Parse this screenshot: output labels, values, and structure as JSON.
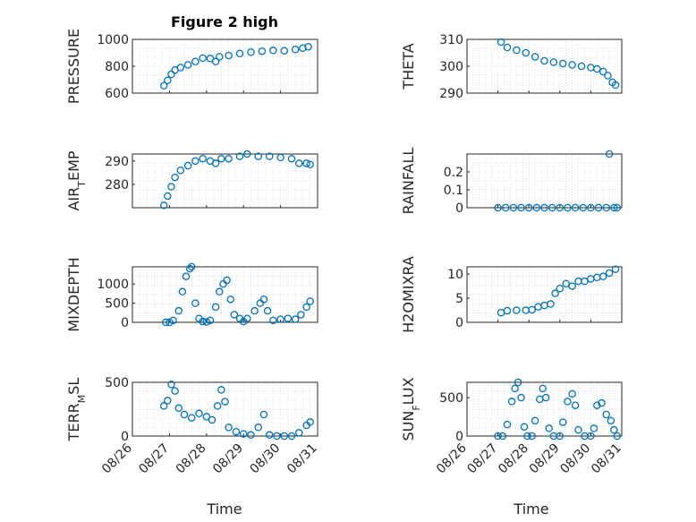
{
  "figure": {
    "title": "Figure 2 high",
    "xlabel": "Time"
  },
  "marker_color": "#0072BD",
  "chart_data": [
    {
      "type": "scatter",
      "ylabel": "PRESSURE",
      "xlim": [
        "08/26",
        "08/31"
      ],
      "ylim": [
        600,
        1000
      ],
      "yticks": [
        600,
        800,
        1000
      ],
      "xticks": [
        "08/26",
        "08/27",
        "08/28",
        "08/29",
        "08/30",
        "08/31"
      ],
      "show_xticklabels": false,
      "grid": true,
      "points": [
        [
          26.85,
          655
        ],
        [
          26.95,
          695
        ],
        [
          27.05,
          740
        ],
        [
          27.15,
          772
        ],
        [
          27.3,
          790
        ],
        [
          27.5,
          810
        ],
        [
          27.7,
          835
        ],
        [
          27.9,
          860
        ],
        [
          28.1,
          858
        ],
        [
          28.25,
          835
        ],
        [
          28.35,
          870
        ],
        [
          28.6,
          880
        ],
        [
          28.9,
          895
        ],
        [
          29.2,
          905
        ],
        [
          29.5,
          912
        ],
        [
          29.8,
          918
        ],
        [
          30.1,
          915
        ],
        [
          30.4,
          925
        ],
        [
          30.6,
          935
        ],
        [
          30.75,
          945
        ]
      ]
    },
    {
      "type": "scatter",
      "ylabel": "THETA",
      "xlim": [
        "08/26",
        "08/31"
      ],
      "ylim": [
        290,
        310
      ],
      "yticks": [
        290,
        300,
        310
      ],
      "xticks": [
        "08/26",
        "08/27",
        "08/28",
        "08/29",
        "08/30",
        "08/31"
      ],
      "show_xticklabels": false,
      "grid": true,
      "points": [
        [
          27.1,
          309
        ],
        [
          27.3,
          307
        ],
        [
          27.6,
          306
        ],
        [
          27.9,
          305
        ],
        [
          28.2,
          303.5
        ],
        [
          28.5,
          302
        ],
        [
          28.8,
          301.5
        ],
        [
          29.1,
          301
        ],
        [
          29.4,
          300.5
        ],
        [
          29.7,
          300
        ],
        [
          30.0,
          299.5
        ],
        [
          30.2,
          299
        ],
        [
          30.4,
          298
        ],
        [
          30.55,
          296.5
        ],
        [
          30.7,
          294
        ],
        [
          30.8,
          293
        ]
      ]
    },
    {
      "type": "scatter",
      "ylabel": "AIR_TEMP",
      "xlim": [
        "08/26",
        "08/31"
      ],
      "ylim": [
        270,
        293
      ],
      "yticks": [
        280,
        290
      ],
      "xticks": [
        "08/26",
        "08/27",
        "08/28",
        "08/29",
        "08/30",
        "08/31"
      ],
      "show_xticklabels": false,
      "grid": true,
      "points": [
        [
          26.85,
          271
        ],
        [
          26.95,
          275
        ],
        [
          27.05,
          279
        ],
        [
          27.15,
          283
        ],
        [
          27.3,
          286
        ],
        [
          27.5,
          288
        ],
        [
          27.7,
          290
        ],
        [
          27.9,
          291
        ],
        [
          28.1,
          290
        ],
        [
          28.25,
          289
        ],
        [
          28.4,
          291
        ],
        [
          28.6,
          291
        ],
        [
          28.9,
          292
        ],
        [
          29.1,
          293
        ],
        [
          29.4,
          292
        ],
        [
          29.7,
          292
        ],
        [
          30.0,
          291.5
        ],
        [
          30.3,
          291
        ],
        [
          30.5,
          289
        ],
        [
          30.7,
          289
        ],
        [
          30.8,
          288.5
        ]
      ]
    },
    {
      "type": "scatter",
      "ylabel": "RAINFALL",
      "xlim": [
        "08/26",
        "08/31"
      ],
      "ylim": [
        0,
        0.3
      ],
      "yticks": [
        0,
        0.1,
        0.2
      ],
      "xticks": [
        "08/26",
        "08/27",
        "08/28",
        "08/29",
        "08/30",
        "08/31"
      ],
      "show_xticklabels": false,
      "grid": true,
      "points": [
        [
          27.0,
          0
        ],
        [
          27.25,
          0
        ],
        [
          27.5,
          0
        ],
        [
          27.75,
          0
        ],
        [
          28.0,
          0
        ],
        [
          28.25,
          0
        ],
        [
          28.5,
          0
        ],
        [
          28.75,
          0
        ],
        [
          29.0,
          0
        ],
        [
          29.25,
          0
        ],
        [
          29.5,
          0
        ],
        [
          29.75,
          0
        ],
        [
          30.0,
          0
        ],
        [
          30.25,
          0
        ],
        [
          30.5,
          0
        ],
        [
          30.75,
          0
        ],
        [
          30.85,
          0
        ],
        [
          30.6,
          0.3
        ]
      ]
    },
    {
      "type": "scatter",
      "ylabel": "MIXDEPTH",
      "xlim": [
        "08/26",
        "08/31"
      ],
      "ylim": [
        0,
        1450
      ],
      "yticks": [
        0,
        500,
        1000
      ],
      "xticks": [
        "08/26",
        "08/27",
        "08/28",
        "08/29",
        "08/30",
        "08/31"
      ],
      "show_xticklabels": false,
      "grid": true,
      "points": [
        [
          26.9,
          0
        ],
        [
          27.0,
          0
        ],
        [
          27.1,
          50
        ],
        [
          27.25,
          300
        ],
        [
          27.35,
          800
        ],
        [
          27.45,
          1200
        ],
        [
          27.55,
          1400
        ],
        [
          27.6,
          1450
        ],
        [
          27.7,
          500
        ],
        [
          27.8,
          100
        ],
        [
          27.9,
          20
        ],
        [
          28.0,
          10
        ],
        [
          28.1,
          50
        ],
        [
          28.25,
          400
        ],
        [
          28.35,
          800
        ],
        [
          28.45,
          1000
        ],
        [
          28.55,
          1100
        ],
        [
          28.65,
          600
        ],
        [
          28.75,
          200
        ],
        [
          28.9,
          100
        ],
        [
          29.0,
          20
        ],
        [
          29.1,
          100
        ],
        [
          29.3,
          300
        ],
        [
          29.45,
          500
        ],
        [
          29.55,
          600
        ],
        [
          29.65,
          300
        ],
        [
          29.8,
          50
        ],
        [
          30.0,
          80
        ],
        [
          30.2,
          100
        ],
        [
          30.4,
          80
        ],
        [
          30.55,
          200
        ],
        [
          30.7,
          400
        ],
        [
          30.8,
          550
        ]
      ]
    },
    {
      "type": "scatter",
      "ylabel": "H2OMIXRA",
      "xlim": [
        "08/26",
        "08/31"
      ],
      "ylim": [
        0,
        11.5
      ],
      "yticks": [
        0,
        5,
        10
      ],
      "xticks": [
        "08/26",
        "08/27",
        "08/28",
        "08/29",
        "08/30",
        "08/31"
      ],
      "show_xticklabels": false,
      "grid": true,
      "points": [
        [
          27.1,
          2
        ],
        [
          27.3,
          2.4
        ],
        [
          27.6,
          2.5
        ],
        [
          27.9,
          2.5
        ],
        [
          28.1,
          2.6
        ],
        [
          28.3,
          3.2
        ],
        [
          28.5,
          3.5
        ],
        [
          28.7,
          3.8
        ],
        [
          28.85,
          6
        ],
        [
          29.0,
          7
        ],
        [
          29.2,
          8
        ],
        [
          29.4,
          7.5
        ],
        [
          29.6,
          8.5
        ],
        [
          29.8,
          8.5
        ],
        [
          30.0,
          9
        ],
        [
          30.2,
          9.3
        ],
        [
          30.4,
          9.5
        ],
        [
          30.6,
          10.2
        ],
        [
          30.8,
          11
        ]
      ]
    },
    {
      "type": "scatter",
      "ylabel": "TERR_MSL",
      "xlim": [
        "08/26",
        "08/31"
      ],
      "ylim": [
        0,
        500
      ],
      "yticks": [
        0,
        500
      ],
      "xticks": [
        "08/26",
        "08/27",
        "08/28",
        "08/29",
        "08/30",
        "08/31"
      ],
      "show_xticklabels": true,
      "grid": true,
      "points": [
        [
          26.85,
          280
        ],
        [
          26.95,
          330
        ],
        [
          27.05,
          480
        ],
        [
          27.15,
          420
        ],
        [
          27.25,
          260
        ],
        [
          27.4,
          200
        ],
        [
          27.6,
          170
        ],
        [
          27.8,
          210
        ],
        [
          28.0,
          180
        ],
        [
          28.15,
          150
        ],
        [
          28.3,
          280
        ],
        [
          28.4,
          430
        ],
        [
          28.5,
          320
        ],
        [
          28.6,
          80
        ],
        [
          28.8,
          40
        ],
        [
          29.0,
          20
        ],
        [
          29.2,
          10
        ],
        [
          29.4,
          80
        ],
        [
          29.55,
          200
        ],
        [
          29.7,
          10
        ],
        [
          29.9,
          0
        ],
        [
          30.1,
          0
        ],
        [
          30.3,
          0
        ],
        [
          30.5,
          30
        ],
        [
          30.7,
          100
        ],
        [
          30.8,
          130
        ]
      ]
    },
    {
      "type": "scatter",
      "ylabel": "SUN_FLUX",
      "xlim": [
        "08/26",
        "08/31"
      ],
      "ylim": [
        0,
        700
      ],
      "yticks": [
        0,
        500
      ],
      "xticks": [
        "08/26",
        "08/27",
        "08/28",
        "08/29",
        "08/30",
        "08/31"
      ],
      "show_xticklabels": true,
      "grid": true,
      "points": [
        [
          27.0,
          0
        ],
        [
          27.15,
          0
        ],
        [
          27.3,
          150
        ],
        [
          27.45,
          450
        ],
        [
          27.55,
          620
        ],
        [
          27.65,
          700
        ],
        [
          27.75,
          500
        ],
        [
          27.85,
          120
        ],
        [
          27.95,
          0
        ],
        [
          28.1,
          0
        ],
        [
          28.2,
          200
        ],
        [
          28.35,
          480
        ],
        [
          28.45,
          620
        ],
        [
          28.55,
          500
        ],
        [
          28.65,
          100
        ],
        [
          28.8,
          0
        ],
        [
          29.0,
          0
        ],
        [
          29.1,
          180
        ],
        [
          29.25,
          450
        ],
        [
          29.4,
          550
        ],
        [
          29.5,
          400
        ],
        [
          29.6,
          80
        ],
        [
          29.8,
          0
        ],
        [
          30.0,
          0
        ],
        [
          30.1,
          100
        ],
        [
          30.2,
          400
        ],
        [
          30.35,
          430
        ],
        [
          30.5,
          280
        ],
        [
          30.65,
          200
        ],
        [
          30.75,
          80
        ],
        [
          30.85,
          0
        ]
      ]
    }
  ]
}
